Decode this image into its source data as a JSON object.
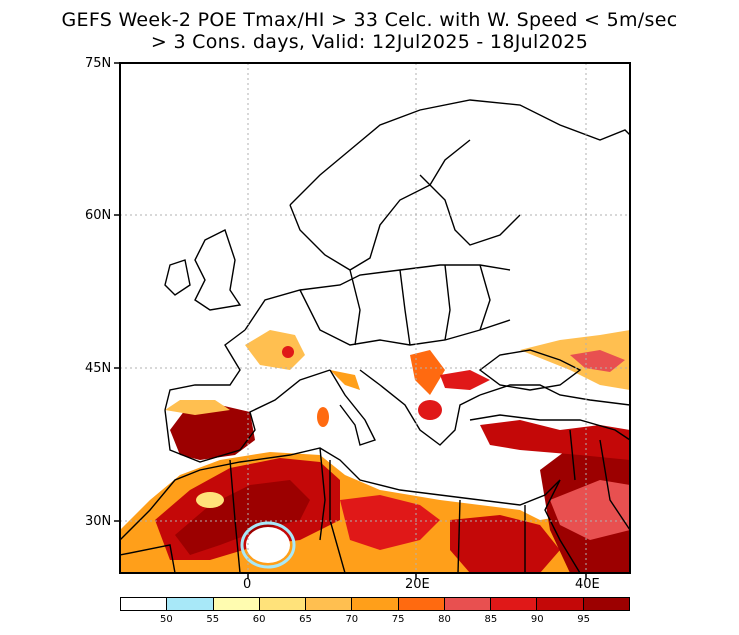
{
  "title": {
    "line1": "GEFS Week-2 POE Tmax/HI > 33 Celc. with W. Speed < 5m/sec",
    "line2": "> 3 Cons. days, Valid: 12Jul2025 - 18Jul2025"
  },
  "axes": {
    "lat_labels": [
      "75N",
      "60N",
      "45N",
      "30N"
    ],
    "lon_labels": [
      "0",
      "20E",
      "40E"
    ]
  },
  "legend": {
    "colors": [
      "#ffffff",
      "#a8e8f8",
      "#fffcb0",
      "#ffe27a",
      "#ffbf50",
      "#ff9f1a",
      "#ff6a10",
      "#e85050",
      "#e01818",
      "#c40808",
      "#9c0000"
    ],
    "labels": [
      "50",
      "55",
      "60",
      "65",
      "70",
      "75",
      "80",
      "85",
      "90",
      "95"
    ]
  }
}
